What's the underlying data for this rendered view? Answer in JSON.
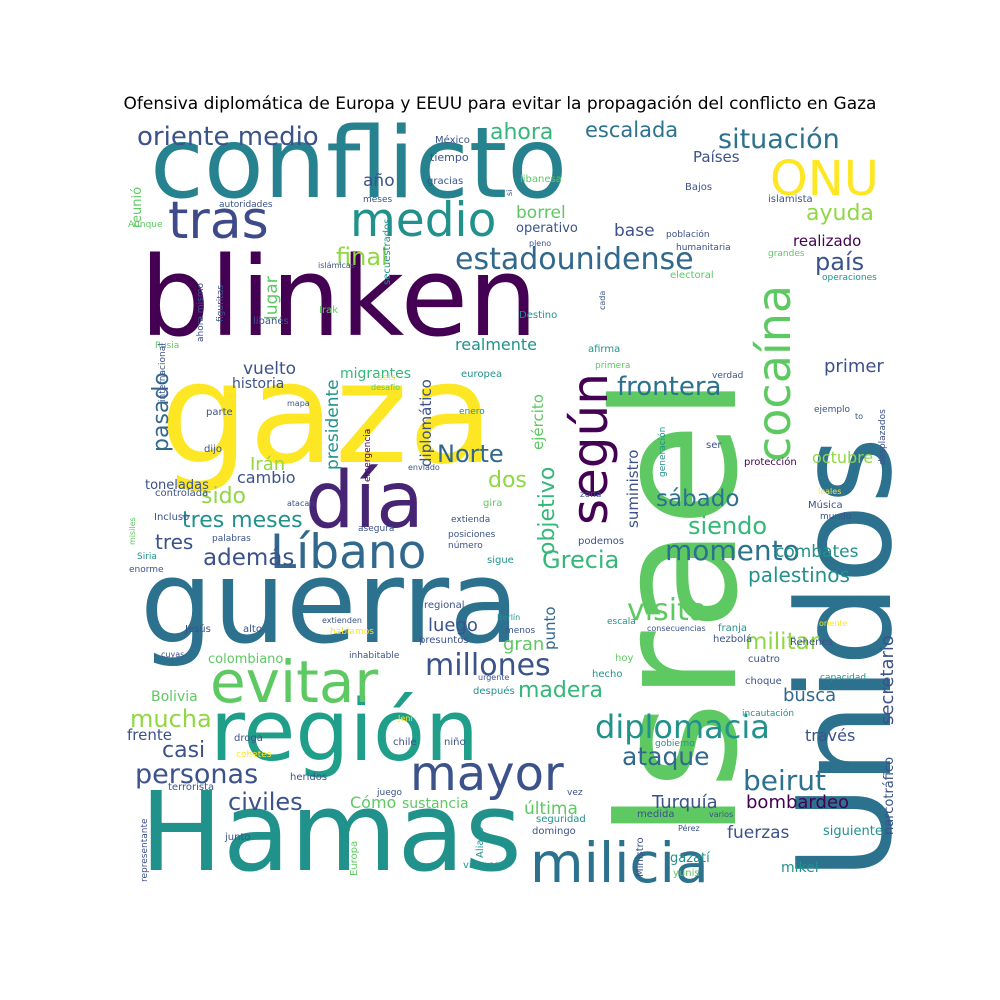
{
  "title": "Ofensiva diplomática de Europa y EEUU para evitar la propagación del conflicto en Gaza",
  "palette": [
    "#440154",
    "#3b528b",
    "#21918c",
    "#5ec962",
    "#fde725",
    "#31688e",
    "#35b779",
    "#90d743"
  ],
  "words": [
    {
      "text": "conflicto",
      "color": "#26828e"
    },
    {
      "text": "Israel",
      "color": "#5ec962"
    },
    {
      "text": "blinken",
      "color": "#440154"
    },
    {
      "text": "gaza",
      "color": "#fde725"
    },
    {
      "text": "Unidos",
      "color": "#2c728e"
    },
    {
      "text": "guerra",
      "color": "#2c728e"
    },
    {
      "text": "Hamas",
      "color": "#21918c"
    },
    {
      "text": "región",
      "color": "#1f9e89"
    },
    {
      "text": "día",
      "color": "#482475"
    },
    {
      "text": "milicia",
      "color": "#2c728e"
    },
    {
      "text": "mayor",
      "color": "#3b528b"
    },
    {
      "text": "evitar",
      "color": "#5ec962"
    },
    {
      "text": "Líbano",
      "color": "#31688e"
    },
    {
      "text": "medio",
      "color": "#21918c"
    },
    {
      "text": "tras",
      "color": "#3e4a89"
    },
    {
      "text": "ONU",
      "color": "#fde725"
    },
    {
      "text": "cocaína",
      "color": "#5ec962"
    },
    {
      "text": "según",
      "color": "#440154"
    },
    {
      "text": "estadounidense",
      "color": "#31688e"
    },
    {
      "text": "diplomacia",
      "color": "#21918c"
    },
    {
      "text": "millones",
      "color": "#3b528b"
    },
    {
      "text": "momento",
      "color": "#2c728e"
    },
    {
      "text": "situación",
      "color": "#2c728e"
    },
    {
      "text": "oriente medio",
      "color": "#3b528b"
    },
    {
      "text": "escalada",
      "color": "#2c728e"
    },
    {
      "text": "ahora",
      "color": "#35b779"
    },
    {
      "text": "frontera",
      "color": "#2c728e"
    },
    {
      "text": "Norte",
      "color": "#31688e"
    },
    {
      "text": "visita",
      "color": "#5ec962"
    },
    {
      "text": "personas",
      "color": "#3b528b"
    },
    {
      "text": "beirut",
      "color": "#2c728e"
    },
    {
      "text": "ataque",
      "color": "#31688e"
    },
    {
      "text": "objetivo",
      "color": "#35b779"
    },
    {
      "text": "Grecia",
      "color": "#35b779"
    },
    {
      "text": "madera",
      "color": "#35b779"
    },
    {
      "text": "sábado",
      "color": "#2c728e"
    },
    {
      "text": "siendo",
      "color": "#35b779"
    },
    {
      "text": "además",
      "color": "#3b528b"
    },
    {
      "text": "pasado",
      "color": "#31688e"
    },
    {
      "text": "país",
      "color": "#3b528b"
    },
    {
      "text": "ayuda",
      "color": "#90d743"
    },
    {
      "text": "final",
      "color": "#90d743"
    },
    {
      "text": "mucha",
      "color": "#90d743"
    },
    {
      "text": "civiles",
      "color": "#3b528b"
    },
    {
      "text": "militar",
      "color": "#90d743"
    },
    {
      "text": "Turquía",
      "color": "#3b528b"
    },
    {
      "text": "bombardeo",
      "color": "#440154"
    },
    {
      "text": "tres meses",
      "color": "#21918c"
    },
    {
      "text": "sido",
      "color": "#90d743"
    },
    {
      "text": "dos",
      "color": "#90d743"
    },
    {
      "text": "casi",
      "color": "#3b528b"
    },
    {
      "text": "secretario",
      "color": "#3b528b"
    },
    {
      "text": "palestinos",
      "color": "#21918c"
    },
    {
      "text": "combates",
      "color": "#21918c"
    },
    {
      "text": "busca",
      "color": "#31688e"
    },
    {
      "text": "primer",
      "color": "#3b528b"
    },
    {
      "text": "octubre",
      "color": "#90d743"
    },
    {
      "text": "gran",
      "color": "#5ec962"
    },
    {
      "text": "luego",
      "color": "#3b528b"
    },
    {
      "text": "última",
      "color": "#5ec962"
    },
    {
      "text": "fuerzas",
      "color": "#3b528b"
    },
    {
      "text": "realizado",
      "color": "#440154"
    },
    {
      "text": "Países",
      "color": "#3b528b"
    },
    {
      "text": "borrel",
      "color": "#5ec962"
    },
    {
      "text": "base",
      "color": "#3b528b"
    },
    {
      "text": "vuelto",
      "color": "#3b528b"
    },
    {
      "text": "Irán",
      "color": "#90d743"
    },
    {
      "text": "tres",
      "color": "#3b528b"
    },
    {
      "text": "Cómo",
      "color": "#5ec962"
    },
    {
      "text": "realmente",
      "color": "#21918c"
    },
    {
      "text": "migrantes",
      "color": "#35b779"
    },
    {
      "text": "presidente",
      "color": "#21918c"
    },
    {
      "text": "diplomático",
      "color": "#3b528b"
    },
    {
      "text": "ejército",
      "color": "#5ec962"
    },
    {
      "text": "suministro",
      "color": "#3b528b"
    },
    {
      "text": "lugar",
      "color": "#5ec962"
    },
    {
      "text": "año",
      "color": "#3b528b"
    },
    {
      "text": "cambio",
      "color": "#3b528b"
    },
    {
      "text": "historia",
      "color": "#3b528b"
    },
    {
      "text": "toneladas",
      "color": "#3b528b"
    },
    {
      "text": "frente",
      "color": "#3b528b"
    },
    {
      "text": "Bolivia",
      "color": "#5ec962"
    },
    {
      "text": "colombiano",
      "color": "#5ec962"
    },
    {
      "text": "sustancia",
      "color": "#5ec962"
    },
    {
      "text": "punto",
      "color": "#31688e"
    },
    {
      "text": "través",
      "color": "#3b528b"
    },
    {
      "text": "narcotráfico",
      "color": "#3b528b"
    },
    {
      "text": "siguiente",
      "color": "#21918c"
    },
    {
      "text": "mikel",
      "color": "#21918c"
    },
    {
      "text": "gazatí",
      "color": "#21918c"
    },
    {
      "text": "reunió",
      "color": "#5ec962"
    },
    {
      "text": "operativo",
      "color": "#3b528b"
    },
    {
      "text": "tiempo",
      "color": "#3b528b"
    },
    {
      "text": "gracias",
      "color": "#3b528b"
    },
    {
      "text": "libanesa",
      "color": "#5ec962"
    },
    {
      "text": "México",
      "color": "#3b528b"
    },
    {
      "text": "Bajos",
      "color": "#3b528b"
    },
    {
      "text": "islamista",
      "color": "#3b528b"
    },
    {
      "text": "meses",
      "color": "#3b528b"
    },
    {
      "text": "secuestrados",
      "color": "#21918c"
    },
    {
      "text": "autoridades",
      "color": "#3b528b"
    },
    {
      "text": "Aunque",
      "color": "#5ec962"
    },
    {
      "text": "población",
      "color": "#3b528b"
    },
    {
      "text": "humanitaria",
      "color": "#3b528b"
    },
    {
      "text": "pleno",
      "color": "#3b528b"
    },
    {
      "text": "grandes",
      "color": "#5ec962"
    },
    {
      "text": "electoral",
      "color": "#5ec962"
    },
    {
      "text": "operaciones",
      "color": "#21918c"
    },
    {
      "text": "islámicas",
      "color": "#3b528b"
    },
    {
      "text": "figuritas",
      "color": "#3b528b"
    },
    {
      "text": "ahora mismo",
      "color": "#3b528b"
    },
    {
      "text": "libanés",
      "color": "#3b528b"
    },
    {
      "text": "Irak",
      "color": "#5ec962"
    },
    {
      "text": "Destino",
      "color": "#21918c"
    },
    {
      "text": "cada",
      "color": "#3b528b"
    },
    {
      "text": "Rusia",
      "color": "#5ec962"
    },
    {
      "text": "internacional",
      "color": "#3b528b"
    },
    {
      "text": "afirma",
      "color": "#21918c"
    },
    {
      "text": "primera",
      "color": "#5ec962"
    },
    {
      "text": "verdad",
      "color": "#3b528b"
    },
    {
      "text": "seis",
      "color": "#fde725"
    },
    {
      "text": "desafío",
      "color": "#5ec962"
    },
    {
      "text": "europea",
      "color": "#21918c"
    },
    {
      "text": "mapa",
      "color": "#3b528b"
    },
    {
      "text": "enero",
      "color": "#21918c"
    },
    {
      "text": "parte",
      "color": "#3b528b"
    },
    {
      "text": "ejemplo",
      "color": "#3b528b"
    },
    {
      "text": "to",
      "color": "#3b528b"
    },
    {
      "text": "desplazados",
      "color": "#3b528b"
    },
    {
      "text": "dijo",
      "color": "#3b528b"
    },
    {
      "text": "ser",
      "color": "#3b528b"
    },
    {
      "text": "generación",
      "color": "#21918c"
    },
    {
      "text": "protección",
      "color": "#440154"
    },
    {
      "text": "emergencia",
      "color": "#440154"
    },
    {
      "text": "enviado",
      "color": "#3b528b"
    },
    {
      "text": "controlada",
      "color": "#3b528b"
    },
    {
      "text": "atacan",
      "color": "#3b528b"
    },
    {
      "text": "gira",
      "color": "#5ec962"
    },
    {
      "text": "zona",
      "color": "#3b528b"
    },
    {
      "text": "leales",
      "color": "#fde725"
    },
    {
      "text": "Música",
      "color": "#3b528b"
    },
    {
      "text": "mundo",
      "color": "#3b528b"
    },
    {
      "text": "misiles",
      "color": "#5ec962"
    },
    {
      "text": "Incluso",
      "color": "#3b528b"
    },
    {
      "text": "asegura",
      "color": "#3b528b"
    },
    {
      "text": "extienda",
      "color": "#3b528b"
    },
    {
      "text": "palabras",
      "color": "#3b528b"
    },
    {
      "text": "posiciones",
      "color": "#3b528b"
    },
    {
      "text": "número",
      "color": "#3b528b"
    },
    {
      "text": "sigue",
      "color": "#21918c"
    },
    {
      "text": "podemos",
      "color": "#3b528b"
    },
    {
      "text": "Siria",
      "color": "#21918c"
    },
    {
      "text": "enorme",
      "color": "#3b528b"
    },
    {
      "text": "regional",
      "color": "#3b528b"
    },
    {
      "text": "escala",
      "color": "#21918c"
    },
    {
      "text": "franja",
      "color": "#21918c"
    },
    {
      "text": "hezbolá",
      "color": "#3b528b"
    },
    {
      "text": "Rehenes",
      "color": "#3b528b"
    },
    {
      "text": "oriente",
      "color": "#fde725"
    },
    {
      "text": "Berlín",
      "color": "#21918c"
    },
    {
      "text": "extienden",
      "color": "#3b528b"
    },
    {
      "text": "hablamos",
      "color": "#fde725"
    },
    {
      "text": "Jesús",
      "color": "#3b528b"
    },
    {
      "text": "alto",
      "color": "#3b528b"
    },
    {
      "text": "presuntos",
      "color": "#3b528b"
    },
    {
      "text": "menos",
      "color": "#3b528b"
    },
    {
      "text": "consecuencias",
      "color": "#3b528b"
    },
    {
      "text": "cuyas",
      "color": "#3b528b"
    },
    {
      "text": "inhabitable",
      "color": "#3b528b"
    },
    {
      "text": "hoy",
      "color": "#5ec962"
    },
    {
      "text": "cuatro",
      "color": "#3b528b"
    },
    {
      "text": "urgente",
      "color": "#3b528b"
    },
    {
      "text": "después",
      "color": "#21918c"
    },
    {
      "text": "hecho",
      "color": "#21918c"
    },
    {
      "text": "capacidad",
      "color": "#21918c"
    },
    {
      "text": "choque",
      "color": "#3b528b"
    },
    {
      "text": "incautación",
      "color": "#21918c"
    },
    {
      "text": "droga",
      "color": "#3b528b"
    },
    {
      "text": "Jeni",
      "color": "#fde725"
    },
    {
      "text": "chile",
      "color": "#3b528b"
    },
    {
      "text": "niño",
      "color": "#3b528b"
    },
    {
      "text": "gobierno",
      "color": "#21918c"
    },
    {
      "text": "cohetes",
      "color": "#fde725"
    },
    {
      "text": "heridos",
      "color": "#3b528b"
    },
    {
      "text": "terrorista",
      "color": "#3b528b"
    },
    {
      "text": "representante",
      "color": "#3b528b"
    },
    {
      "text": "juego",
      "color": "#3b528b"
    },
    {
      "text": "vez",
      "color": "#3b528b"
    },
    {
      "text": "seguridad",
      "color": "#21918c"
    },
    {
      "text": "domingo",
      "color": "#3b528b"
    },
    {
      "text": "Aliado",
      "color": "#21918c"
    },
    {
      "text": "medida",
      "color": "#3b528b"
    },
    {
      "text": "varios",
      "color": "#3b528b"
    },
    {
      "text": "Ministro",
      "color": "#3b528b"
    },
    {
      "text": "Pérez",
      "color": "#3b528b"
    },
    {
      "text": "yunis",
      "color": "#5ec962"
    },
    {
      "text": "junto",
      "color": "#3b528b"
    },
    {
      "text": "Europa",
      "color": "#5ec962"
    },
    {
      "text": "viernes",
      "color": "#21918c"
    },
    {
      "text": "si",
      "color": "#3b528b"
    }
  ]
}
